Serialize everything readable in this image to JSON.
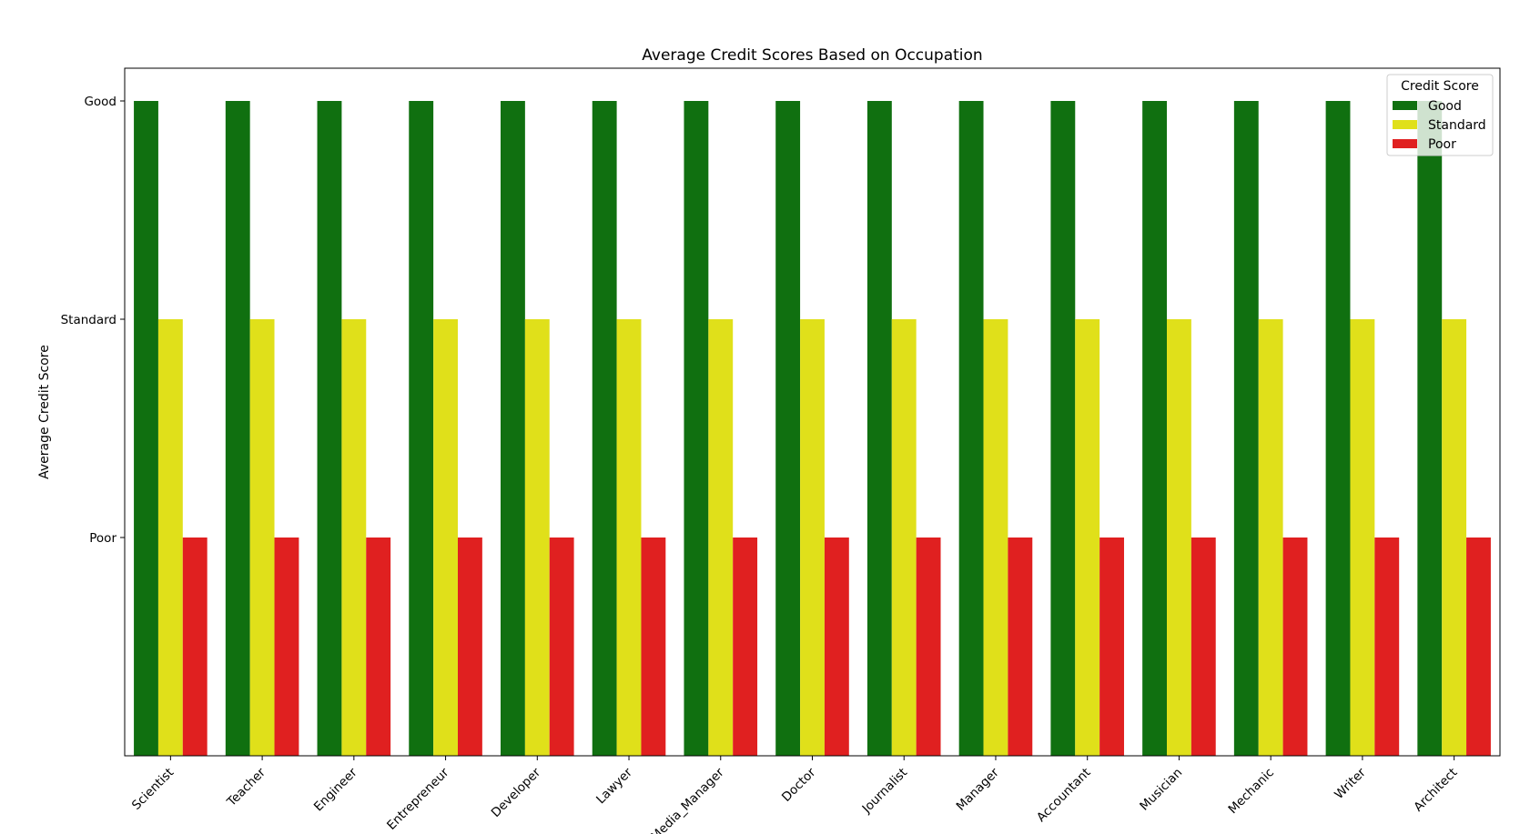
{
  "chart_data": {
    "type": "bar",
    "title": "Average Credit Scores Based on Occupation",
    "xlabel": "",
    "ylabel": "Average Credit Score",
    "categories": [
      "Scientist",
      "Teacher",
      "Engineer",
      "Entrepreneur",
      "Developer",
      "Lawyer",
      "Media_Manager",
      "Doctor",
      "Journalist",
      "Manager",
      "Accountant",
      "Musician",
      "Mechanic",
      "Writer",
      "Architect"
    ],
    "y_ticks": [
      {
        "label": "Good",
        "value": 3
      },
      {
        "label": "Standard",
        "value": 2
      },
      {
        "label": "Poor",
        "value": 1
      }
    ],
    "ylim": [
      0,
      3.15
    ],
    "grid": false,
    "legend": {
      "title": "Credit Score",
      "placement": "upper right"
    },
    "series": [
      {
        "name": "Good",
        "color": "#107010",
        "values": [
          3,
          3,
          3,
          3,
          3,
          3,
          3,
          3,
          3,
          3,
          3,
          3,
          3,
          3,
          3
        ]
      },
      {
        "name": "Standard",
        "color": "#e0e01a",
        "values": [
          2,
          2,
          2,
          2,
          2,
          2,
          2,
          2,
          2,
          2,
          2,
          2,
          2,
          2,
          2
        ]
      },
      {
        "name": "Poor",
        "color": "#e02020",
        "values": [
          1,
          1,
          1,
          1,
          1,
          1,
          1,
          1,
          1,
          1,
          1,
          1,
          1,
          1,
          1
        ]
      }
    ]
  }
}
